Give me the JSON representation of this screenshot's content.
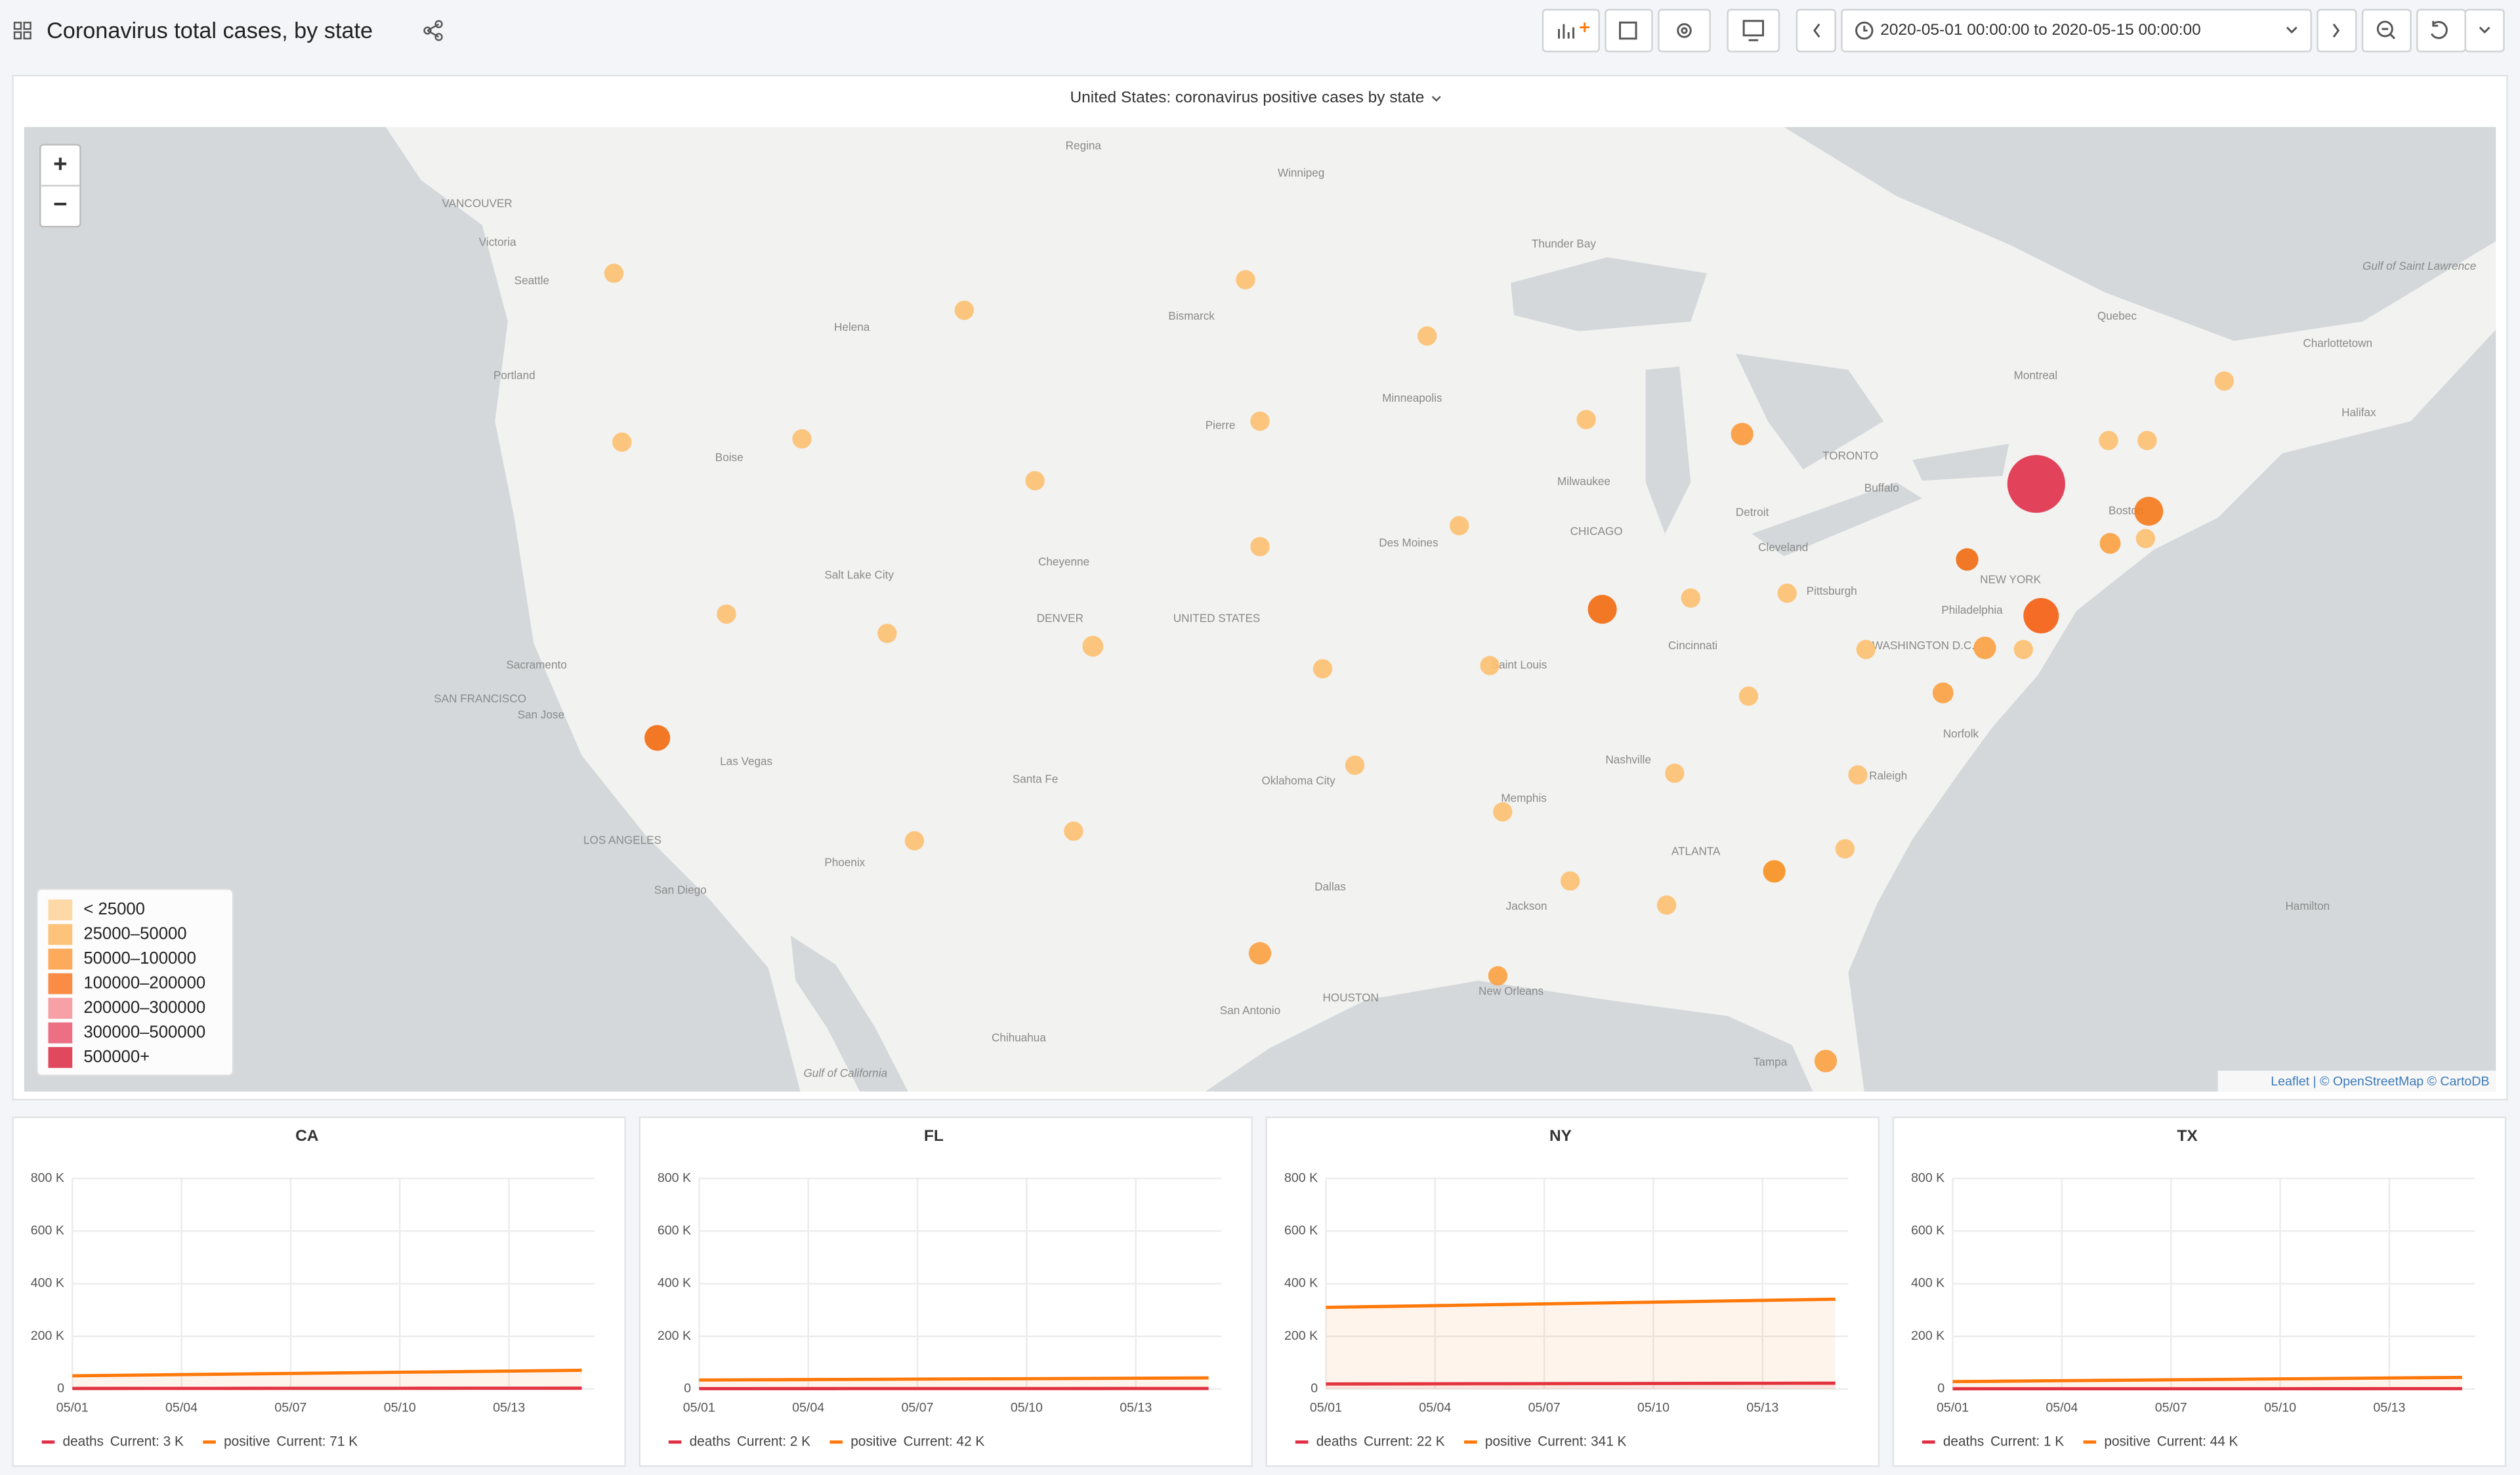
{
  "header": {
    "title": "Coronavirus total cases, by state",
    "time_range": "2020-05-01 00:00:00 to 2020-05-15 00:00:00"
  },
  "map": {
    "title": "United States: coronavirus positive cases by state",
    "zoom_in": "+",
    "zoom_out": "−",
    "legend": [
      "< 25000",
      "25000–50000",
      "50000–100000",
      "100000–200000",
      "200000–300000",
      "300000–500000",
      "500000+"
    ],
    "legend_colors": [
      "#fdd9a8",
      "#fdc37a",
      "#fdaa5c",
      "#fb8c46",
      "#f7a0a6",
      "#ec6f84",
      "#e0485e"
    ],
    "attribution": "Leaflet | © OpenStreetMap © CartoDB",
    "labels": [
      "Regina",
      "Winnipeg",
      "VANCOUVER",
      "Victoria",
      "Seattle",
      "Helena",
      "Bismarck",
      "Thunder Bay",
      "Portland",
      "Minneapolis",
      "Pierre",
      "Boise",
      "TORONTO",
      "Buffalo",
      "Milwaukee",
      "Detroit",
      "CHICAGO",
      "Des Moines",
      "Cheyenne",
      "Salt Lake City",
      "Cleveland",
      "Pittsburgh",
      "NEW YORK",
      "DENVER",
      "UNITED STATES",
      "Philadelphia",
      "WASHINGTON D.C.",
      "Cincinnati",
      "Sacramento",
      "SAN FRANCISCO",
      "San Jose",
      "Saint Louis",
      "Las Vegas",
      "Nashville",
      "Norfolk",
      "Raleigh",
      "Santa Fe",
      "Oklahoma City",
      "Memphis",
      "LOS ANGELES",
      "Phoenix",
      "ATLANTA",
      "San Diego",
      "Dallas",
      "Jackson",
      "HOUSTON",
      "New Orleans",
      "San Antonio",
      "Chihuahua",
      "Tampa",
      "Gulf of California",
      "Quebec",
      "Montreal",
      "Charlottetown",
      "Halifax",
      "Gulf of Saint Lawrence",
      "Hamilton",
      "Boston"
    ]
  },
  "chart_data": [
    {
      "type": "line",
      "title": "CA",
      "categories": [
        "05/01",
        null,
        null,
        "05/04",
        null,
        null,
        "05/07",
        null,
        null,
        "05/10",
        null,
        null,
        "05/13",
        null,
        null
      ],
      "ylim": [
        0,
        800000
      ],
      "yticks": [
        0,
        {
          "value": 200000,
          "label": "200 K"
        },
        {
          "value": 400000,
          "label": "400 K"
        },
        {
          "value": 600000,
          "label": "600 K"
        },
        {
          "value": 800000,
          "label": "800 K"
        }
      ],
      "grid": true,
      "series": [
        {
          "name": "deaths",
          "color": "#e02f44",
          "current": "Current: 3 K",
          "values": [
            2000,
            2070,
            2140,
            2210,
            2290,
            2360,
            2430,
            2500,
            2570,
            2640,
            2710,
            2780,
            2860,
            2930,
            3000
          ]
        },
        {
          "name": "positive",
          "color": "#ff780a",
          "current": "Current: 71 K",
          "values": [
            50000,
            51500,
            53000,
            54500,
            56000,
            57500,
            59000,
            60500,
            62000,
            63500,
            65000,
            66500,
            68000,
            69500,
            71000
          ]
        }
      ]
    },
    {
      "type": "line",
      "title": "FL",
      "categories": [
        "05/01",
        null,
        null,
        "05/04",
        null,
        null,
        "05/07",
        null,
        null,
        "05/10",
        null,
        null,
        "05/13",
        null,
        null
      ],
      "ylim": [
        0,
        800000
      ],
      "yticks": [
        0,
        {
          "value": 200000,
          "label": "200 K"
        },
        {
          "value": 400000,
          "label": "400 K"
        },
        {
          "value": 600000,
          "label": "600 K"
        },
        {
          "value": 800000,
          "label": "800 K"
        }
      ],
      "grid": true,
      "series": [
        {
          "name": "deaths",
          "color": "#e02f44",
          "current": "Current: 2 K",
          "values": [
            1300,
            1340,
            1390,
            1430,
            1470,
            1510,
            1560,
            1600,
            1640,
            1690,
            1730,
            1770,
            1810,
            1860,
            1900
          ]
        },
        {
          "name": "positive",
          "color": "#ff780a",
          "current": "Current: 42 K",
          "values": [
            34000,
            34600,
            35100,
            35700,
            36300,
            36900,
            37400,
            38000,
            38600,
            39100,
            39700,
            40300,
            40900,
            41400,
            42000
          ]
        }
      ]
    },
    {
      "type": "line",
      "title": "NY",
      "categories": [
        "05/01",
        null,
        null,
        "05/04",
        null,
        null,
        "05/07",
        null,
        null,
        "05/10",
        null,
        null,
        "05/13",
        null,
        null
      ],
      "ylim": [
        0,
        800000
      ],
      "yticks": [
        0,
        {
          "value": 200000,
          "label": "200 K"
        },
        {
          "value": 400000,
          "label": "400 K"
        },
        {
          "value": 600000,
          "label": "600 K"
        },
        {
          "value": 800000,
          "label": "800 K"
        }
      ],
      "grid": true,
      "series": [
        {
          "name": "deaths",
          "color": "#e02f44",
          "current": "Current: 22 K",
          "values": [
            19000,
            19200,
            19400,
            19600,
            19900,
            20100,
            20300,
            20500,
            20700,
            20900,
            21100,
            21400,
            21600,
            21800,
            22000
          ]
        },
        {
          "name": "positive",
          "color": "#ff780a",
          "current": "Current: 341 K",
          "values": [
            310000,
            312200,
            314400,
            316600,
            318900,
            321100,
            323300,
            325500,
            327700,
            329900,
            332100,
            334400,
            336600,
            338800,
            341000
          ]
        }
      ]
    },
    {
      "type": "line",
      "title": "TX",
      "categories": [
        "05/01",
        null,
        null,
        "05/04",
        null,
        null,
        "05/07",
        null,
        null,
        "05/10",
        null,
        null,
        "05/13",
        null,
        null
      ],
      "ylim": [
        0,
        800000
      ],
      "yticks": [
        0,
        {
          "value": 200000,
          "label": "200 K"
        },
        {
          "value": 400000,
          "label": "400 K"
        },
        {
          "value": 600000,
          "label": "600 K"
        },
        {
          "value": 800000,
          "label": "800 K"
        }
      ],
      "grid": true,
      "series": [
        {
          "name": "deaths",
          "color": "#e02f44",
          "current": "Current: 1 K",
          "values": [
            800,
            830,
            860,
            890,
            910,
            940,
            970,
            1000,
            1030,
            1060,
            1090,
            1110,
            1140,
            1170,
            1200
          ]
        },
        {
          "name": "positive",
          "color": "#ff780a",
          "current": "Current: 44 K",
          "values": [
            28000,
            29100,
            30300,
            31400,
            32600,
            33700,
            34900,
            36000,
            37100,
            38300,
            39400,
            40600,
            41700,
            42900,
            44000
          ]
        }
      ]
    }
  ]
}
